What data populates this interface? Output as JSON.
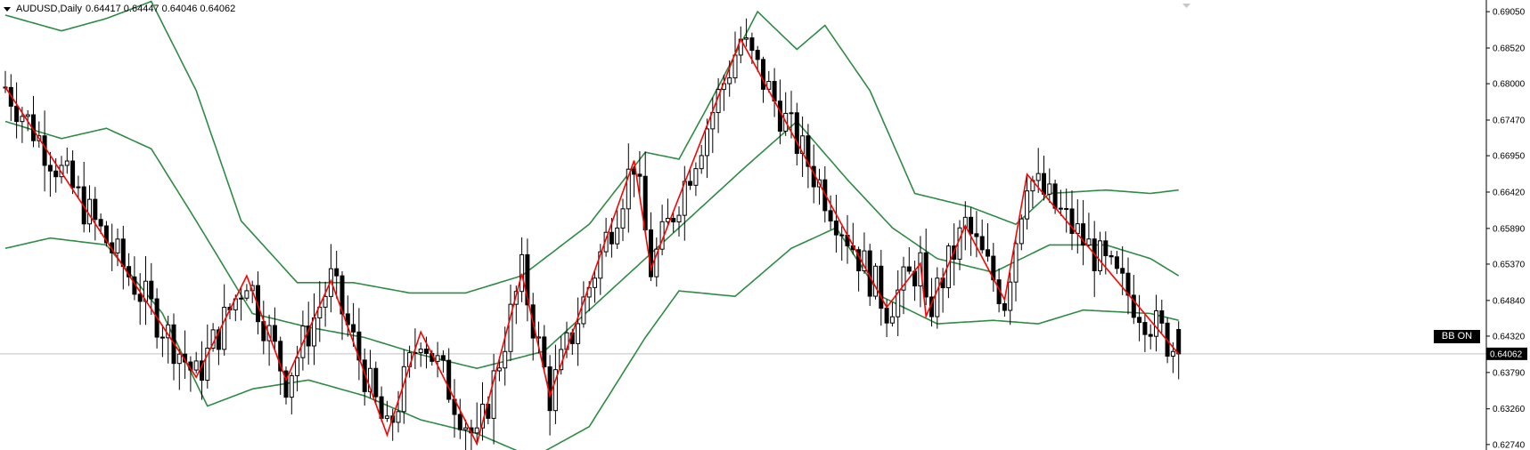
{
  "header": {
    "symbol": "AUDUSD,Daily",
    "ohlc": "0.64417 0.64447 0.64046 0.64062"
  },
  "indicator_badge": "BB ON",
  "price_axis": {
    "labels": [
      "0.69050",
      "0.68520",
      "0.68000",
      "0.67470",
      "0.66950",
      "0.66420",
      "0.65890",
      "0.65370",
      "0.64840",
      "0.64320",
      "0.63790",
      "0.63260",
      "0.62740"
    ],
    "current_price": "0.64062"
  },
  "colors": {
    "candle": "#000000",
    "bollinger_bands": "#2e8b45",
    "zigzag": "#ff0000",
    "price_line": "#c0c0c0",
    "axis_line": "#000000"
  },
  "chart_data": {
    "type": "candlestick",
    "overlays": [
      "bollinger_bands",
      "zigzag"
    ],
    "ylim": [
      0.6266,
      0.6922
    ],
    "last_close": 0.64062,
    "zigzag_points": [
      {
        "i": 0,
        "p": 0.6795
      },
      {
        "i": 34,
        "p": 0.6372
      },
      {
        "i": 43,
        "p": 0.652
      },
      {
        "i": 50,
        "p": 0.6368
      },
      {
        "i": 58,
        "p": 0.6513
      },
      {
        "i": 68,
        "p": 0.6288
      },
      {
        "i": 74,
        "p": 0.6438
      },
      {
        "i": 84,
        "p": 0.6275
      },
      {
        "i": 92,
        "p": 0.6523
      },
      {
        "i": 97,
        "p": 0.6345
      },
      {
        "i": 112,
        "p": 0.6688
      },
      {
        "i": 115,
        "p": 0.653
      },
      {
        "i": 131,
        "p": 0.6865
      },
      {
        "i": 157,
        "p": 0.6474
      },
      {
        "i": 163,
        "p": 0.6538
      },
      {
        "i": 164,
        "p": 0.6461
      },
      {
        "i": 171,
        "p": 0.6593
      },
      {
        "i": 178,
        "p": 0.6485
      },
      {
        "i": 182,
        "p": 0.6668
      },
      {
        "i": 209,
        "p": 0.6406
      }
    ],
    "bollinger_upper": [
      {
        "i": 0,
        "p": 0.69
      },
      {
        "i": 10,
        "p": 0.6877
      },
      {
        "i": 18,
        "p": 0.6895
      },
      {
        "i": 26,
        "p": 0.692
      },
      {
        "i": 34,
        "p": 0.679
      },
      {
        "i": 42,
        "p": 0.66
      },
      {
        "i": 52,
        "p": 0.651
      },
      {
        "i": 62,
        "p": 0.651
      },
      {
        "i": 72,
        "p": 0.6495
      },
      {
        "i": 82,
        "p": 0.6495
      },
      {
        "i": 92,
        "p": 0.652
      },
      {
        "i": 104,
        "p": 0.6595
      },
      {
        "i": 114,
        "p": 0.67
      },
      {
        "i": 120,
        "p": 0.669
      },
      {
        "i": 126,
        "p": 0.678
      },
      {
        "i": 134,
        "p": 0.6905
      },
      {
        "i": 141,
        "p": 0.685
      },
      {
        "i": 146,
        "p": 0.6885
      },
      {
        "i": 154,
        "p": 0.679
      },
      {
        "i": 162,
        "p": 0.664
      },
      {
        "i": 172,
        "p": 0.662
      },
      {
        "i": 180,
        "p": 0.6595
      },
      {
        "i": 186,
        "p": 0.664
      },
      {
        "i": 196,
        "p": 0.6645
      },
      {
        "i": 204,
        "p": 0.664
      },
      {
        "i": 209,
        "p": 0.6645
      }
    ],
    "bollinger_middle": [
      {
        "i": 0,
        "p": 0.6745
      },
      {
        "i": 10,
        "p": 0.672
      },
      {
        "i": 18,
        "p": 0.6735
      },
      {
        "i": 26,
        "p": 0.6705
      },
      {
        "i": 34,
        "p": 0.66
      },
      {
        "i": 44,
        "p": 0.6465
      },
      {
        "i": 54,
        "p": 0.6445
      },
      {
        "i": 64,
        "p": 0.643
      },
      {
        "i": 74,
        "p": 0.6405
      },
      {
        "i": 84,
        "p": 0.6385
      },
      {
        "i": 96,
        "p": 0.641
      },
      {
        "i": 110,
        "p": 0.6515
      },
      {
        "i": 120,
        "p": 0.659
      },
      {
        "i": 132,
        "p": 0.668
      },
      {
        "i": 141,
        "p": 0.6745
      },
      {
        "i": 150,
        "p": 0.666
      },
      {
        "i": 158,
        "p": 0.659
      },
      {
        "i": 166,
        "p": 0.6545
      },
      {
        "i": 176,
        "p": 0.6525
      },
      {
        "i": 186,
        "p": 0.6565
      },
      {
        "i": 196,
        "p": 0.6565
      },
      {
        "i": 204,
        "p": 0.6545
      },
      {
        "i": 209,
        "p": 0.652
      }
    ],
    "bollinger_lower": [
      {
        "i": 0,
        "p": 0.656
      },
      {
        "i": 8,
        "p": 0.6575
      },
      {
        "i": 18,
        "p": 0.6565
      },
      {
        "i": 28,
        "p": 0.6465
      },
      {
        "i": 36,
        "p": 0.633
      },
      {
        "i": 44,
        "p": 0.6355
      },
      {
        "i": 54,
        "p": 0.6368
      },
      {
        "i": 64,
        "p": 0.6345
      },
      {
        "i": 74,
        "p": 0.631
      },
      {
        "i": 84,
        "p": 0.629
      },
      {
        "i": 94,
        "p": 0.6255
      },
      {
        "i": 104,
        "p": 0.63
      },
      {
        "i": 114,
        "p": 0.643
      },
      {
        "i": 120,
        "p": 0.6498
      },
      {
        "i": 130,
        "p": 0.649
      },
      {
        "i": 140,
        "p": 0.656
      },
      {
        "i": 148,
        "p": 0.659
      },
      {
        "i": 156,
        "p": 0.649
      },
      {
        "i": 166,
        "p": 0.645
      },
      {
        "i": 176,
        "p": 0.6455
      },
      {
        "i": 184,
        "p": 0.645
      },
      {
        "i": 192,
        "p": 0.647
      },
      {
        "i": 204,
        "p": 0.6465
      },
      {
        "i": 209,
        "p": 0.6455
      }
    ]
  }
}
